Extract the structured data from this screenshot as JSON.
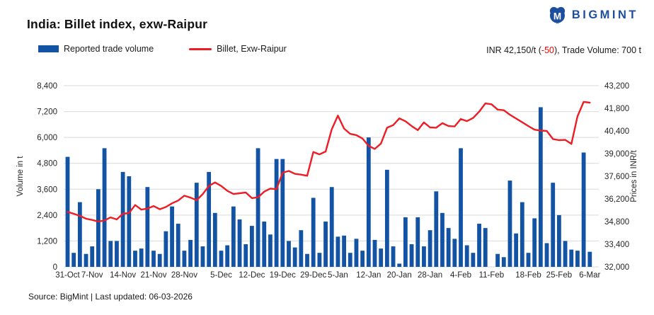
{
  "header": {
    "title": "India: Billet index, exw-Raipur",
    "brand": "BIGMINT"
  },
  "legend": {
    "bar_label": "Reported trade volume",
    "line_label": "Billet, Exw-Raipur"
  },
  "annotation": {
    "prefix": "INR 42,150/t (",
    "change": "-50",
    "suffix": "), Trade Volume: 700 t"
  },
  "footer": {
    "source": "Source: BigMint | Last updated: 06-03-2026"
  },
  "colors": {
    "bar": "#1253a4",
    "line": "#ee1c25",
    "brand": "#1d4f9e",
    "grid": "#d9d9d9",
    "negative": "#fe0000"
  },
  "chart_data": {
    "type": "bar+line",
    "title": "India: Billet index, exw-Raipur",
    "grid": "horizontal",
    "legend_position": "top-left",
    "y_left": {
      "label": "Volume in t",
      "min": 0,
      "max": 8400,
      "ticks": [
        0,
        1200,
        2400,
        3600,
        4800,
        6000,
        7200,
        8400
      ]
    },
    "y_right": {
      "label": "Prices in INR/t",
      "min": 32000,
      "max": 43200,
      "ticks": [
        32000,
        33400,
        34800,
        36200,
        37600,
        39000,
        40400,
        41800,
        43200
      ]
    },
    "x_tick_labels": [
      {
        "label": "31-Oct",
        "index": 0
      },
      {
        "label": "7-Nov",
        "index": 4
      },
      {
        "label": "14-Nov",
        "index": 9
      },
      {
        "label": "21-Nov",
        "index": 14
      },
      {
        "label": "28-Nov",
        "index": 19
      },
      {
        "label": "5-Dec",
        "index": 25
      },
      {
        "label": "12-Dec",
        "index": 30
      },
      {
        "label": "19-Dec",
        "index": 35
      },
      {
        "label": "29-Dec",
        "index": 40
      },
      {
        "label": "5-Jan",
        "index": 44
      },
      {
        "label": "12-Jan",
        "index": 49
      },
      {
        "label": "20-Jan",
        "index": 54
      },
      {
        "label": "28-Jan",
        "index": 59
      },
      {
        "label": "4-Feb",
        "index": 64
      },
      {
        "label": "11-Feb",
        "index": 69
      },
      {
        "label": "18-Feb",
        "index": 75
      },
      {
        "label": "25-Feb",
        "index": 80
      },
      {
        "label": "6-Mar",
        "index": 85
      }
    ],
    "series": [
      {
        "name": "Reported trade volume",
        "type": "bar",
        "axis": "left",
        "values": [
          5100,
          650,
          3000,
          600,
          950,
          3600,
          5500,
          1200,
          1200,
          4400,
          4200,
          750,
          850,
          3700,
          750,
          600,
          1650,
          2800,
          2000,
          750,
          1250,
          3900,
          950,
          4400,
          2500,
          750,
          1000,
          2800,
          2200,
          1050,
          1900,
          5500,
          2100,
          1500,
          5000,
          5000,
          1200,
          900,
          1700,
          600,
          3200,
          650,
          2100,
          3700,
          1400,
          1450,
          650,
          1300,
          750,
          6000,
          1250,
          850,
          4500,
          950,
          150,
          2300,
          1050,
          2300,
          950,
          1700,
          3500,
          2500,
          1800,
          1300,
          5500,
          1000,
          650,
          2000,
          1800,
          0,
          600,
          450,
          4000,
          1550,
          3000,
          650,
          2250,
          7400,
          1100,
          3900,
          2400,
          1200,
          800,
          750,
          5300,
          700
        ]
      },
      {
        "name": "Billet, Exw-Raipur",
        "type": "line",
        "axis": "right",
        "values": [
          35400,
          35280,
          35150,
          34980,
          34900,
          34800,
          34870,
          35060,
          34930,
          35280,
          35330,
          35820,
          35540,
          35600,
          35760,
          35560,
          35700,
          35930,
          36100,
          36400,
          36280,
          36120,
          36500,
          37000,
          37220,
          37000,
          36700,
          36500,
          36550,
          36600,
          36250,
          36300,
          36650,
          36840,
          36800,
          37820,
          37930,
          37750,
          37700,
          37630,
          39100,
          38950,
          39130,
          40500,
          41350,
          40550,
          40220,
          40140,
          39930,
          39480,
          39290,
          39620,
          40600,
          40760,
          41180,
          41000,
          40700,
          40450,
          40930,
          40620,
          40600,
          40880,
          40700,
          40680,
          41140,
          41010,
          41200,
          41600,
          42100,
          42050,
          41720,
          41680,
          41400,
          41170,
          40940,
          40700,
          40480,
          40420,
          40400,
          39900,
          39830,
          39850,
          39600,
          41300,
          42200,
          42150
        ]
      }
    ],
    "latest": {
      "price_inr_per_t": 42150,
      "change": -50,
      "trade_volume_t": 700
    }
  }
}
